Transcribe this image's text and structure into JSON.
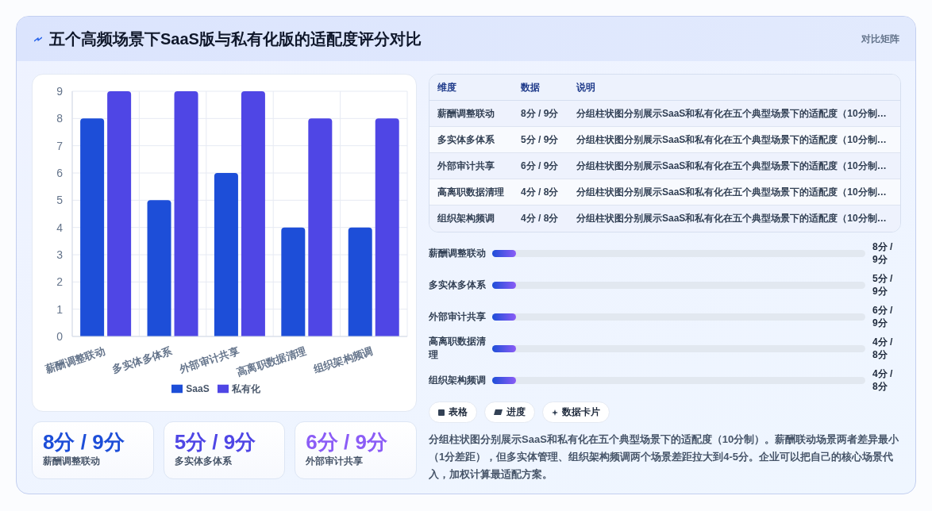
{
  "chart_data": [
    {
      "type": "bar",
      "title": "五个高频场景下SaaS版与私有化版的适配度评分对比",
      "categories": [
        "薪酬调整联动",
        "多实体多体系",
        "外部审计共享",
        "高离职数据清理",
        "组织架构频调"
      ],
      "series": [
        {
          "name": "SaaS",
          "color": "#1d4ed8",
          "values": [
            8,
            5,
            6,
            4,
            4
          ]
        },
        {
          "name": "私有化",
          "color": "#4f46e5",
          "values": [
            9,
            9,
            9,
            8,
            8
          ]
        }
      ],
      "ylim": [
        0,
        9
      ],
      "yticks": [
        0,
        1,
        2,
        3,
        4,
        5,
        6,
        7,
        8,
        9
      ],
      "grid": true,
      "legend": "bottom"
    },
    {
      "type": "other",
      "title": "对比矩阵",
      "categories": [
        "维度",
        "数据",
        "说明"
      ],
      "cell_labels": [
        [
          "薪酬调整联动",
          "8分 / 9分",
          "分组柱状图分别展示SaaS和私有化在五个典型场景下的适配度（10分制…"
        ],
        [
          "多实体多体系",
          "5分 / 9分",
          "分组柱状图分别展示SaaS和私有化在五个典型场景下的适配度（10分制…"
        ],
        [
          "外部审计共享",
          "6分 / 9分",
          "分组柱状图分别展示SaaS和私有化在五个典型场景下的适配度（10分制…"
        ],
        [
          "高离职数据清理",
          "4分 / 8分",
          "分组柱状图分别展示SaaS和私有化在五个典型场景下的适配度（10分制…"
        ],
        [
          "组织架构频调",
          "4分 / 8分",
          "分组柱状图分别展示SaaS和私有化在五个典型场景下的适配度（10分制…"
        ]
      ]
    },
    {
      "type": "other",
      "categories": [
        "薪酬调整联动",
        "多实体多体系",
        "外部审计共享",
        "高离职数据清理",
        "组织架构频调"
      ],
      "value_labels": [
        "8分 / 9分",
        "5分 / 9分",
        "6分 / 9分",
        "4分 / 8分",
        "4分 / 8分"
      ]
    },
    {
      "type": "other",
      "categories": [
        "薪酬调整联动",
        "多实体多体系",
        "外部审计共享"
      ],
      "value_labels": [
        "8分 / 9分",
        "5分 / 9分",
        "6分 / 9分"
      ]
    },
    {
      "type": "other",
      "categories": [
        "表格",
        "进度",
        "数据卡片"
      ],
      "annotations": [
        "分组柱状图分别展示SaaS和私有化在五个典型场景下的适配度（10分制）。薪酬联动场景两者差异最小（1分差距），但多实体管理、组织架构频调两个场景差距拉大到4-5分。企业可以把自己的核心场景代入，加权计算最适配方案。"
      ]
    }
  ]
}
